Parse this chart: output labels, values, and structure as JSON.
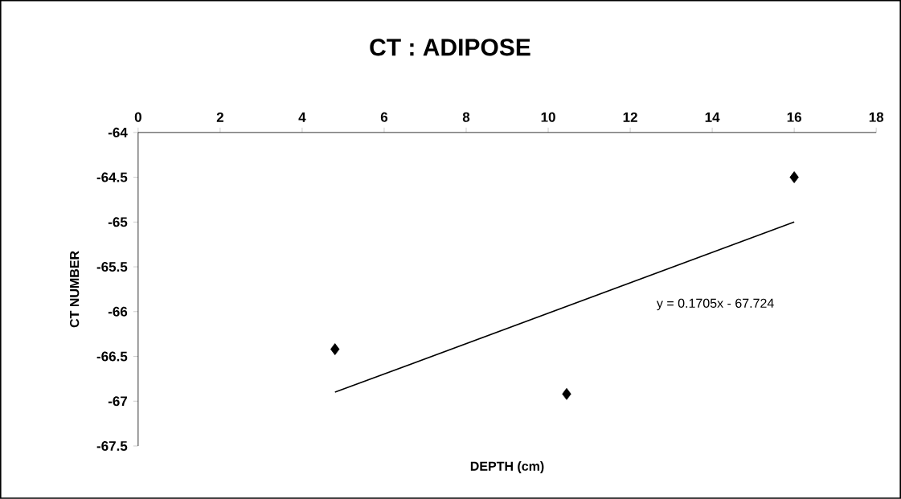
{
  "chart_data": {
    "type": "scatter",
    "title": "CT : ADIPOSE",
    "xlabel": "DEPTH (cm)",
    "ylabel": "CT NUMBER",
    "x": [
      4.8,
      10.45,
      16
    ],
    "series": [
      {
        "color": "#000000",
        "marker": "diamond",
        "values": [
          -66.42,
          -66.92,
          -64.5
        ]
      },
      {
        "type": "line",
        "color": "#000000",
        "marker": "none",
        "x": [
          4.8,
          16
        ],
        "values": [
          -66.9,
          -65.0
        ]
      }
    ],
    "xlim": [
      0,
      18
    ],
    "xticks": [
      0,
      2,
      4,
      6,
      8,
      10,
      12,
      14,
      16,
      18
    ],
    "ylim": [
      -67.5,
      -64
    ],
    "yticks": [
      -67.5,
      -67,
      -66.5,
      -66,
      -65.5,
      -65,
      -64.5,
      -64
    ],
    "grid": false,
    "annotations": [
      "y = 0.1705x - 67.724"
    ]
  }
}
